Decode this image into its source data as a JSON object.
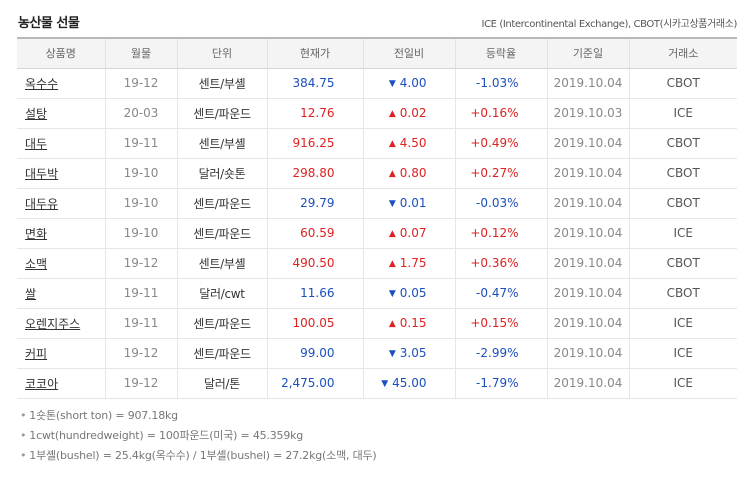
{
  "header": {
    "title": "농산물 선물",
    "source": "ICE (Intercontinental Exchange), CBOT(시카고상품거래소)"
  },
  "colors": {
    "up": "#dd2222",
    "down": "#1b4fbf"
  },
  "table": {
    "columns": [
      "상품명",
      "월물",
      "단위",
      "현재가",
      "전일비",
      "등락율",
      "기준일",
      "거래소"
    ],
    "rows": [
      {
        "name": "옥수수",
        "month": "19-12",
        "unit": "센트/부셸",
        "price": "384.75",
        "dir": "down",
        "arrow": "▼",
        "diff": "4.00",
        "rate": "-1.03%",
        "date": "2019.10.04",
        "exchange": "CBOT"
      },
      {
        "name": "설탕",
        "month": "20-03",
        "unit": "센트/파운드",
        "price": "12.76",
        "dir": "up",
        "arrow": "▲",
        "diff": "0.02",
        "rate": "+0.16%",
        "date": "2019.10.03",
        "exchange": "ICE"
      },
      {
        "name": "대두",
        "month": "19-11",
        "unit": "센트/부셸",
        "price": "916.25",
        "dir": "up",
        "arrow": "▲",
        "diff": "4.50",
        "rate": "+0.49%",
        "date": "2019.10.04",
        "exchange": "CBOT"
      },
      {
        "name": "대두박",
        "month": "19-10",
        "unit": "달러/숏톤",
        "price": "298.80",
        "dir": "up",
        "arrow": "▲",
        "diff": "0.80",
        "rate": "+0.27%",
        "date": "2019.10.04",
        "exchange": "CBOT"
      },
      {
        "name": "대두유",
        "month": "19-10",
        "unit": "센트/파운드",
        "price": "29.79",
        "dir": "down",
        "arrow": "▼",
        "diff": "0.01",
        "rate": "-0.03%",
        "date": "2019.10.04",
        "exchange": "CBOT"
      },
      {
        "name": "면화",
        "month": "19-10",
        "unit": "센트/파운드",
        "price": "60.59",
        "dir": "up",
        "arrow": "▲",
        "diff": "0.07",
        "rate": "+0.12%",
        "date": "2019.10.04",
        "exchange": "ICE"
      },
      {
        "name": "소맥",
        "month": "19-12",
        "unit": "센트/부셸",
        "price": "490.50",
        "dir": "up",
        "arrow": "▲",
        "diff": "1.75",
        "rate": "+0.36%",
        "date": "2019.10.04",
        "exchange": "CBOT"
      },
      {
        "name": "쌀",
        "month": "19-11",
        "unit": "달러/cwt",
        "price": "11.66",
        "dir": "down",
        "arrow": "▼",
        "diff": "0.05",
        "rate": "-0.47%",
        "date": "2019.10.04",
        "exchange": "CBOT"
      },
      {
        "name": "오렌지주스",
        "month": "19-11",
        "unit": "센트/파운드",
        "price": "100.05",
        "dir": "up",
        "arrow": "▲",
        "diff": "0.15",
        "rate": "+0.15%",
        "date": "2019.10.04",
        "exchange": "ICE"
      },
      {
        "name": "커피",
        "month": "19-12",
        "unit": "센트/파운드",
        "price": "99.00",
        "dir": "down",
        "arrow": "▼",
        "diff": "3.05",
        "rate": "-2.99%",
        "date": "2019.10.04",
        "exchange": "ICE"
      },
      {
        "name": "코코아",
        "month": "19-12",
        "unit": "달러/톤",
        "price": "2,475.00",
        "dir": "down",
        "arrow": "▼",
        "diff": "45.00",
        "rate": "-1.79%",
        "date": "2019.10.04",
        "exchange": "ICE"
      }
    ]
  },
  "notes": [
    "1숏톤(short ton) = 907.18kg",
    "1cwt(hundredweight) = 100파운드(미국) = 45.359kg",
    "1부셸(bushel) = 25.4kg(옥수수) / 1부셸(bushel) = 27.2kg(소맥, 대두)"
  ]
}
